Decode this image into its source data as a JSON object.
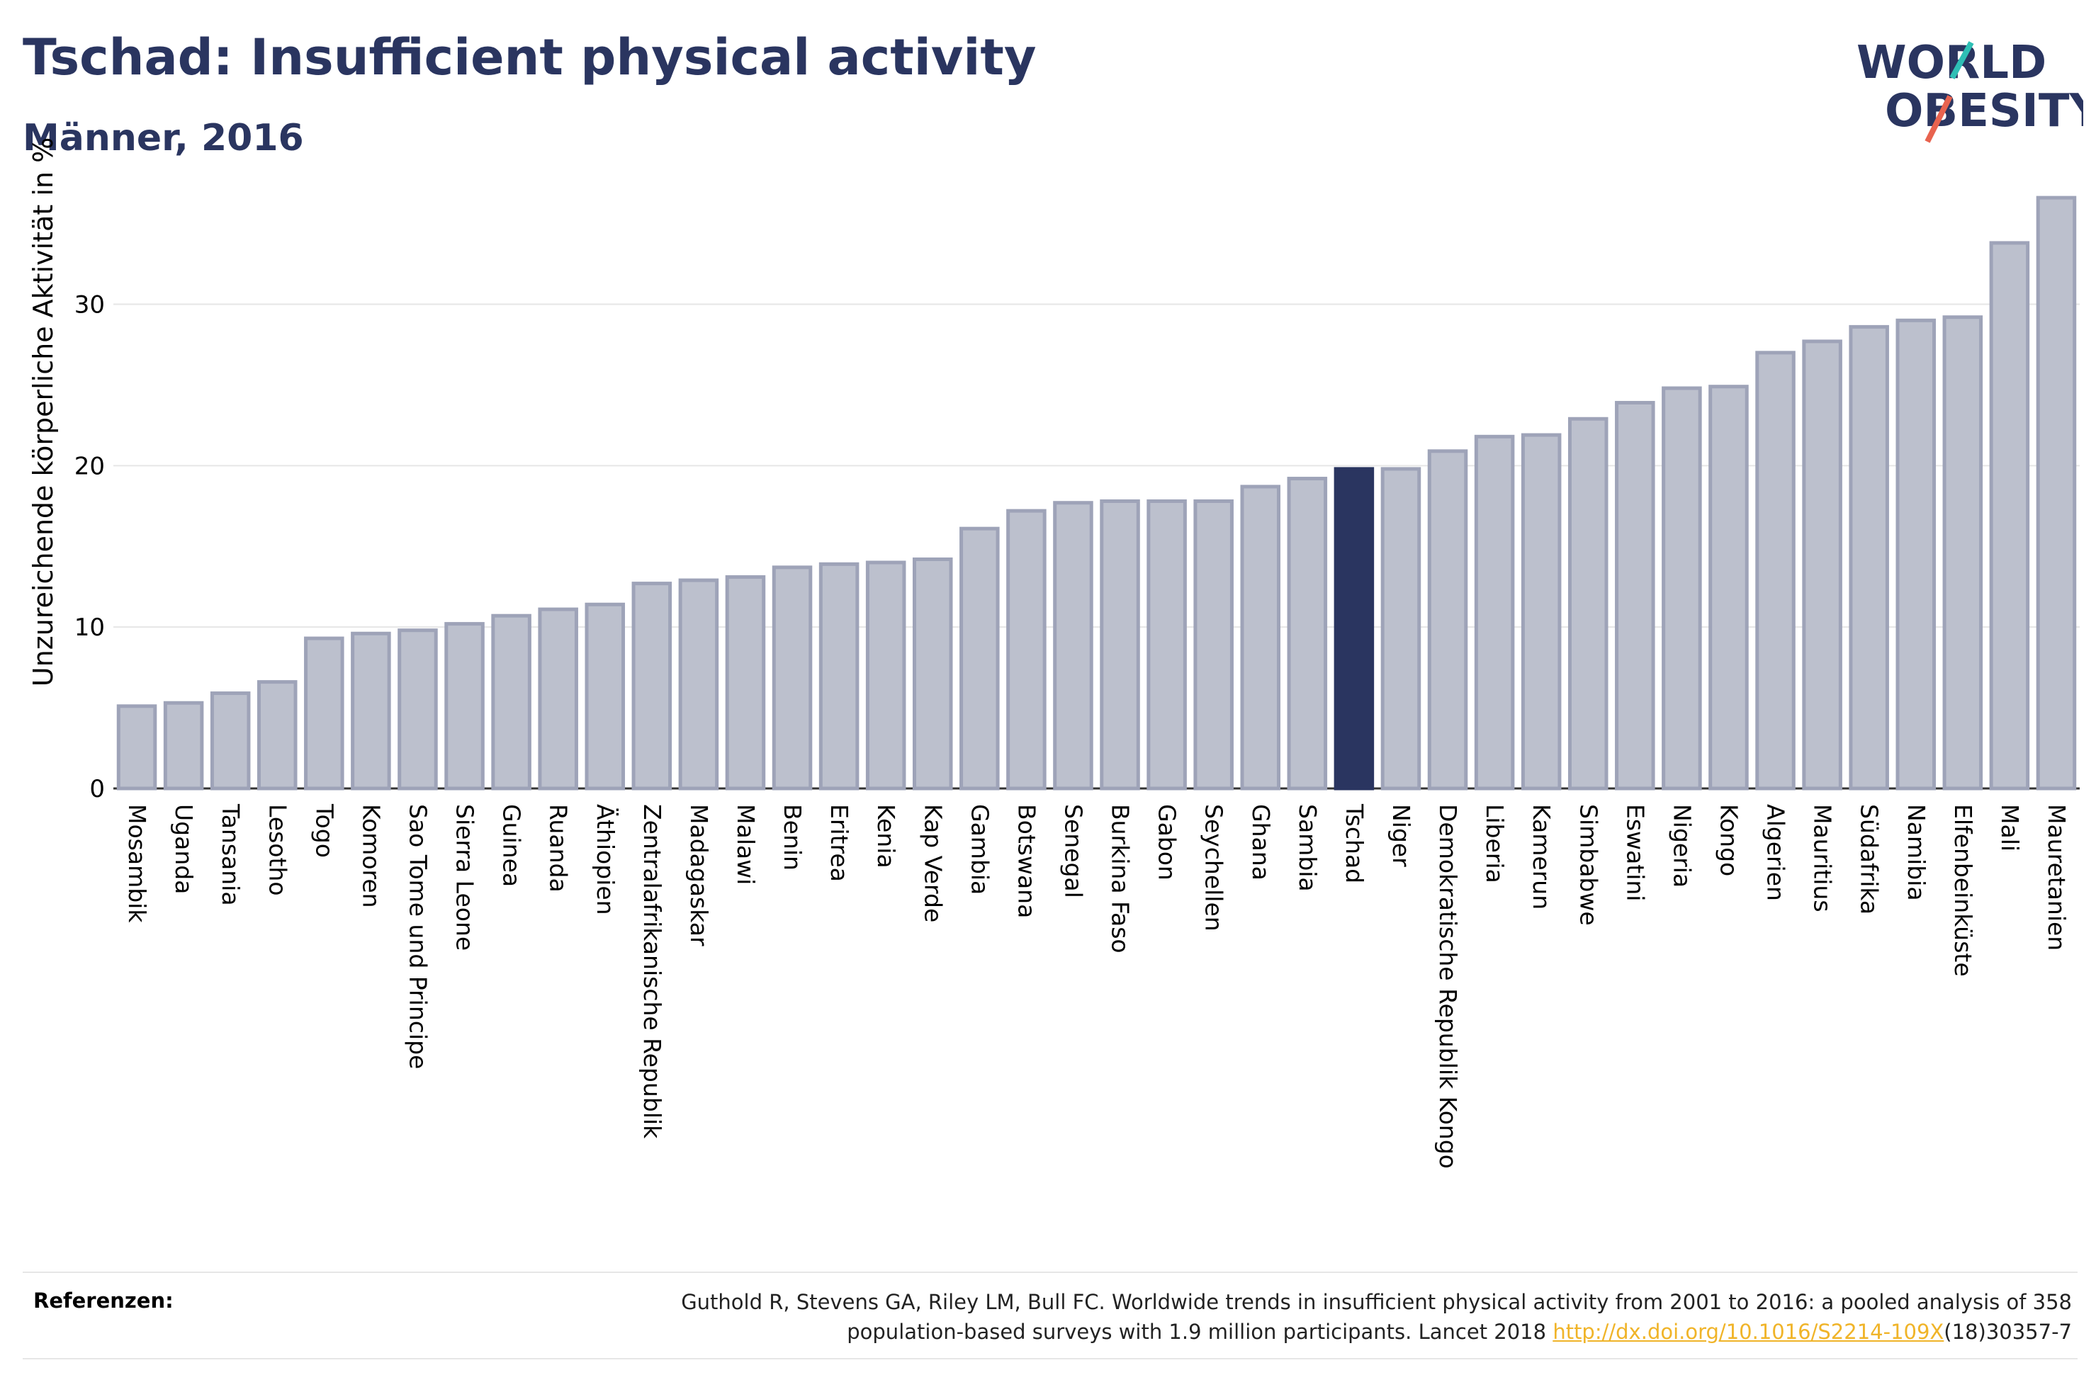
{
  "header": {
    "title": "Tschad: Insufficient physical activity",
    "subtitle": "Männer, 2016"
  },
  "logo": {
    "line1": "WORLD",
    "line2": "OBESITY",
    "text_color": "#2a3560",
    "slash_colors": [
      "#2ebfb5",
      "#e8634f"
    ]
  },
  "colors": {
    "bar_fill": "#bcc0cd",
    "bar_stroke": "#9ea3b8",
    "highlight": "#2a3560",
    "grid": "#e6e6e6"
  },
  "chart_data": {
    "type": "bar",
    "title": "Tschad: Insufficient physical activity",
    "subtitle": "Männer, 2016",
    "ylabel": "Unzureichende körperliche Aktivität in %",
    "xlabel": "",
    "ylim": [
      0,
      37
    ],
    "yticks": [
      0,
      10,
      20,
      30
    ],
    "grid": true,
    "highlight": "Tschad",
    "categories": [
      "Mosambik",
      "Uganda",
      "Tansania",
      "Lesotho",
      "Togo",
      "Komoren",
      "Sao Tome und Principe",
      "Sierra Leone",
      "Guinea",
      "Ruanda",
      "Äthiopien",
      "Zentralafrikanische Republik",
      "Madagaskar",
      "Malawi",
      "Benin",
      "Eritrea",
      "Kenia",
      "Kap Verde",
      "Gambia",
      "Botswana",
      "Senegal",
      "Burkina Faso",
      "Gabon",
      "Seychellen",
      "Ghana",
      "Sambia",
      "Tschad",
      "Niger",
      "Demokratische Republik Kongo",
      "Liberia",
      "Kamerun",
      "Simbabwe",
      "Eswatini",
      "Nigeria",
      "Kongo",
      "Algerien",
      "Mauritius",
      "Südafrika",
      "Namibia",
      "Elfenbeinküste",
      "Mali",
      "Mauretanien"
    ],
    "values": [
      5.1,
      5.3,
      5.9,
      6.6,
      9.3,
      9.6,
      9.8,
      10.2,
      10.7,
      11.1,
      11.4,
      12.7,
      12.9,
      13.1,
      13.7,
      13.9,
      14.0,
      14.2,
      16.1,
      17.2,
      17.7,
      17.8,
      17.8,
      17.8,
      18.7,
      19.2,
      19.8,
      19.8,
      20.9,
      21.8,
      21.9,
      22.9,
      23.9,
      24.8,
      24.9,
      27.0,
      27.7,
      28.6,
      29.0,
      29.2,
      33.8,
      36.6
    ]
  },
  "references": {
    "heading": "Referenzen:",
    "text_line1": "Guthold R, Stevens GA, Riley LM, Bull FC. Worldwide trends in insufficient physical activity from 2001 to 2016: a pooled analysis of 358",
    "text_line2": "population-based surveys with 1.9 million participants. Lancet 2018",
    "link": "http://dx.doi.org/10.1016/S2214-109X",
    "suffix": "(18)30357-7"
  }
}
